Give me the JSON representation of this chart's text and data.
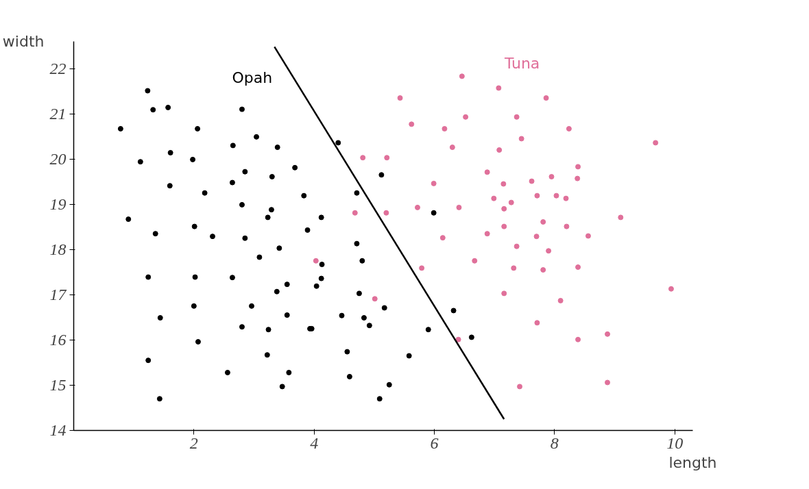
{
  "chart_data": {
    "type": "scatter",
    "xlabel": "length",
    "ylabel": "width",
    "xlim": [
      0,
      10.3
    ],
    "ylim": [
      14,
      22.6
    ],
    "xticks": [
      2,
      4,
      6,
      8,
      10
    ],
    "yticks": [
      14,
      15,
      16,
      17,
      18,
      19,
      20,
      21,
      22
    ],
    "grid": false,
    "series": [
      {
        "name": "Opah",
        "color": "#000000",
        "marker": "circle",
        "x": [
          1.23,
          1.32,
          1.57,
          0.78,
          1.11,
          1.61,
          2.06,
          1.98,
          1.6,
          0.91,
          1.36,
          2.18,
          2.01,
          2.31,
          2.64,
          2.65,
          2.8,
          2.85,
          3.04,
          3.39,
          3.3,
          3.68,
          3.83,
          2.8,
          3.29,
          3.23,
          3.09,
          3.42,
          2.85,
          1.24,
          2.02,
          2.64,
          3.38,
          3.55,
          4.04,
          4.12,
          4.13,
          3.89,
          4.12,
          4.4,
          4.71,
          5.12,
          4.71,
          4.8,
          4.75,
          4.83,
          5.17,
          4.46,
          3.96,
          3.55,
          2.96,
          2.8,
          3.24,
          2.0,
          1.44,
          2.07,
          1.24,
          1.43,
          2.56,
          3.22,
          3.58,
          3.47,
          3.93,
          4.55,
          4.59,
          5.25,
          5.09,
          5.58,
          5.9,
          6.32,
          6.62,
          5.99,
          4.92
        ],
        "values": [
          21.51,
          21.09,
          21.14,
          20.67,
          19.94,
          20.14,
          20.67,
          19.99,
          19.41,
          18.67,
          18.35,
          19.25,
          18.51,
          18.29,
          19.48,
          20.3,
          21.1,
          19.72,
          20.49,
          20.26,
          19.61,
          19.81,
          19.19,
          18.99,
          18.88,
          18.71,
          17.83,
          18.03,
          18.25,
          17.39,
          17.39,
          17.38,
          17.07,
          17.23,
          17.19,
          17.36,
          17.67,
          18.43,
          18.71,
          20.36,
          19.25,
          19.65,
          18.13,
          17.75,
          17.03,
          16.49,
          16.71,
          16.54,
          16.25,
          16.55,
          16.75,
          16.29,
          16.23,
          16.75,
          16.49,
          15.96,
          15.55,
          14.7,
          15.28,
          15.67,
          15.28,
          14.97,
          16.25,
          15.74,
          15.19,
          15.01,
          14.7,
          15.65,
          16.23,
          16.65,
          16.06,
          18.81,
          16.32
        ]
      },
      {
        "name": "Tuna",
        "color": "#e0709a",
        "marker": "circle",
        "x": [
          6.46,
          7.07,
          7.86,
          5.43,
          5.62,
          6.52,
          6.17,
          7.37,
          8.24,
          7.45,
          6.3,
          7.08,
          9.68,
          4.81,
          5.21,
          8.39,
          6.88,
          5.99,
          7.15,
          7.62,
          7.95,
          8.38,
          6.99,
          7.28,
          7.71,
          8.03,
          8.19,
          9.1,
          4.68,
          5.2,
          5.72,
          6.41,
          7.16,
          7.81,
          6.88,
          7.16,
          8.2,
          6.14,
          7.7,
          8.56,
          7.37,
          7.9,
          4.03,
          6.67,
          5.79,
          7.32,
          7.81,
          8.39,
          9.94,
          7.16,
          8.1,
          5.01,
          7.71,
          8.88,
          8.39,
          6.4,
          7.42,
          8.88
        ],
        "values": [
          21.83,
          21.57,
          21.35,
          21.35,
          20.77,
          20.93,
          20.67,
          20.93,
          20.67,
          20.45,
          20.26,
          20.2,
          20.36,
          20.03,
          20.03,
          19.83,
          19.71,
          19.46,
          19.45,
          19.51,
          19.61,
          19.57,
          19.13,
          19.04,
          19.19,
          19.19,
          19.13,
          18.71,
          18.81,
          18.81,
          18.93,
          18.93,
          18.9,
          18.61,
          18.35,
          18.51,
          18.51,
          18.26,
          18.29,
          18.3,
          18.07,
          17.97,
          17.75,
          17.75,
          17.59,
          17.59,
          17.55,
          17.61,
          17.13,
          17.03,
          16.87,
          16.91,
          16.38,
          16.13,
          16.01,
          16.01,
          14.97,
          15.06
        ]
      },
      {
        "type": "line",
        "color": "#000000",
        "x": [
          3.34,
          7.16
        ],
        "values": [
          22.48,
          14.25
        ]
      }
    ]
  }
}
